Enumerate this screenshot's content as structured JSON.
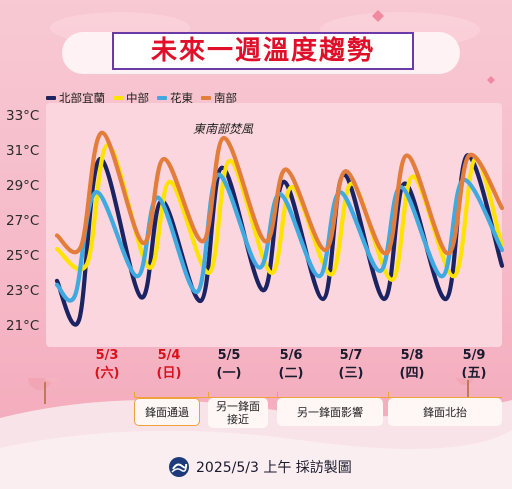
{
  "title": "未來一週溫度趨勢",
  "annotation": "東南部焚風",
  "legend": [
    {
      "name": "北部宜蘭",
      "color": "#1b2363"
    },
    {
      "name": "中部",
      "color": "#ffe300"
    },
    {
      "name": "花東",
      "color": "#3fa9e0"
    },
    {
      "name": "南部",
      "color": "#e27d3c"
    }
  ],
  "dates": [
    {
      "date": "5/3",
      "weekday": "(六)",
      "color": "#d6121d"
    },
    {
      "date": "5/4",
      "weekday": "(日)",
      "color": "#d6121d"
    },
    {
      "date": "5/5",
      "weekday": "(一)",
      "color": "#1a1a2e"
    },
    {
      "date": "5/6",
      "weekday": "(二)",
      "color": "#1a1a2e"
    },
    {
      "date": "5/7",
      "weekday": "(三)",
      "color": "#1a1a2e"
    },
    {
      "date": "5/8",
      "weekday": "(四)",
      "color": "#1a1a2e"
    },
    {
      "date": "5/9",
      "weekday": "(五)",
      "color": "#1a1a2e"
    }
  ],
  "phases": [
    {
      "text": "鋒面通過",
      "outline": true
    },
    {
      "text": "另一鋒面\n接近",
      "outline": false
    },
    {
      "text": "另一鋒面影響",
      "outline": false
    },
    {
      "text": "鋒面北抬",
      "outline": false
    }
  ],
  "credit": "2025/5/3 上午 採訪製圖",
  "chart_data": {
    "type": "line",
    "title": "未來一週溫度趨勢",
    "ylim": [
      21,
      33
    ],
    "yticks": [
      "33°C",
      "31°C",
      "29°C",
      "27°C",
      "25°C",
      "23°C",
      "21°C"
    ],
    "ytick_values": [
      33,
      31,
      29,
      27,
      25,
      23,
      21
    ],
    "categories": [
      "5/3",
      "5/4",
      "5/5",
      "5/6",
      "5/7",
      "5/8",
      "5/9"
    ],
    "grid": false,
    "legend_position": "top-left",
    "series": [
      {
        "name": "北部宜蘭",
        "color": "#1b2363",
        "min": [
          21.4,
          22.7,
          22.5,
          23.1,
          22.6,
          22.6,
          22.6
        ],
        "max": [
          30.6,
          28.2,
          30.1,
          29.3,
          29.7,
          29.2,
          30.8
        ],
        "end": 24.5
      },
      {
        "name": "中部",
        "color": "#ffe300",
        "min": [
          24.6,
          24.4,
          24.1,
          24.1,
          24.0,
          23.7,
          23.9
        ],
        "max": [
          31.4,
          29.3,
          30.5,
          29.0,
          29.2,
          29.6,
          30.6
        ],
        "end": 25.6
      },
      {
        "name": "花東",
        "color": "#3fa9e0",
        "min": [
          22.8,
          23.9,
          23.0,
          24.4,
          23.9,
          24.2,
          23.9
        ],
        "max": [
          28.7,
          28.4,
          29.7,
          28.6,
          28.7,
          29.0,
          29.4
        ],
        "end": 25.4
      },
      {
        "name": "南部",
        "color": "#e27d3c",
        "min": [
          25.6,
          25.8,
          25.9,
          25.9,
          25.4,
          25.2,
          25.2
        ],
        "max": [
          32.1,
          30.6,
          31.8,
          30.0,
          29.9,
          30.8,
          30.8
        ],
        "end": 27.8
      }
    ]
  }
}
